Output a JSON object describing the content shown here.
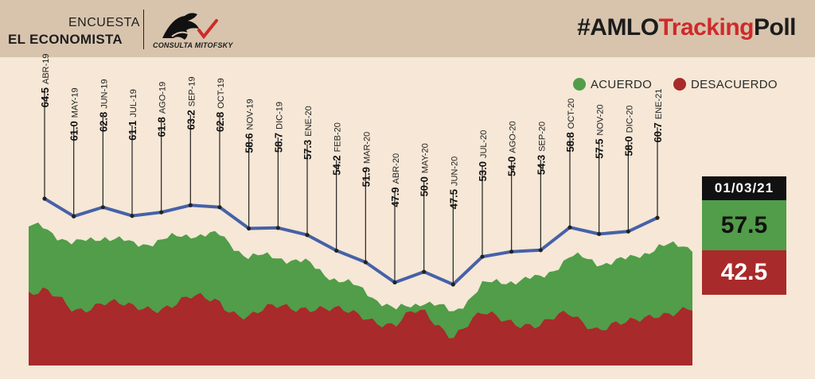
{
  "header": {
    "brand_line1": "ENCUESTA",
    "brand_line2": "EL ECONOMISTA",
    "logo_text": "CONSULTA MITOFSKY",
    "hashtag_prefix": "#AMLO",
    "hashtag_mid": "Tracking",
    "hashtag_suffix": "Poll"
  },
  "legend": [
    {
      "label": "ACUERDO",
      "color": "#519d49"
    },
    {
      "label": "DESACUERDO",
      "color": "#a82a2a"
    }
  ],
  "latest": {
    "date": "01/03/21",
    "acuerdo": "57.5",
    "desacuerdo": "42.5"
  },
  "colors": {
    "acuerdo": "#519d49",
    "desacuerdo": "#a82a2a",
    "line": "#4661a8",
    "header": "#d8c4ad",
    "background": "#f6e7d6"
  },
  "chart_data": {
    "type": "line",
    "categories": [
      "ABR-19",
      "MAY-19",
      "JUN-19",
      "JUL-19",
      "AGO-19",
      "SEP-19",
      "OCT-19",
      "NOV-19",
      "DIC-19",
      "ENE-20",
      "FEB-20",
      "MAR-20",
      "ABR-20",
      "MAY-20",
      "JUN-20",
      "JUL-20",
      "AGO-20",
      "SEP-20",
      "OCT-20",
      "NOV-20",
      "DIC-20",
      "ENE-21"
    ],
    "series": [
      {
        "name": "",
        "values": [
          64.5,
          61.0,
          62.8,
          61.1,
          61.8,
          63.2,
          62.8,
          58.6,
          58.7,
          57.3,
          54.2,
          51.9,
          47.9,
          50.0,
          47.5,
          53.0,
          54.0,
          54.3,
          58.8,
          57.5,
          58.0,
          60.7
        ]
      }
    ],
    "background_areas": [
      {
        "name": "ACUERDO",
        "color": "#519d49"
      },
      {
        "name": "DESACUERDO",
        "color": "#a82a2a"
      }
    ],
    "ylim": [
      44,
      68
    ],
    "grid": false,
    "legend_position": "top-right",
    "title": "",
    "xlabel": "",
    "ylabel": ""
  }
}
